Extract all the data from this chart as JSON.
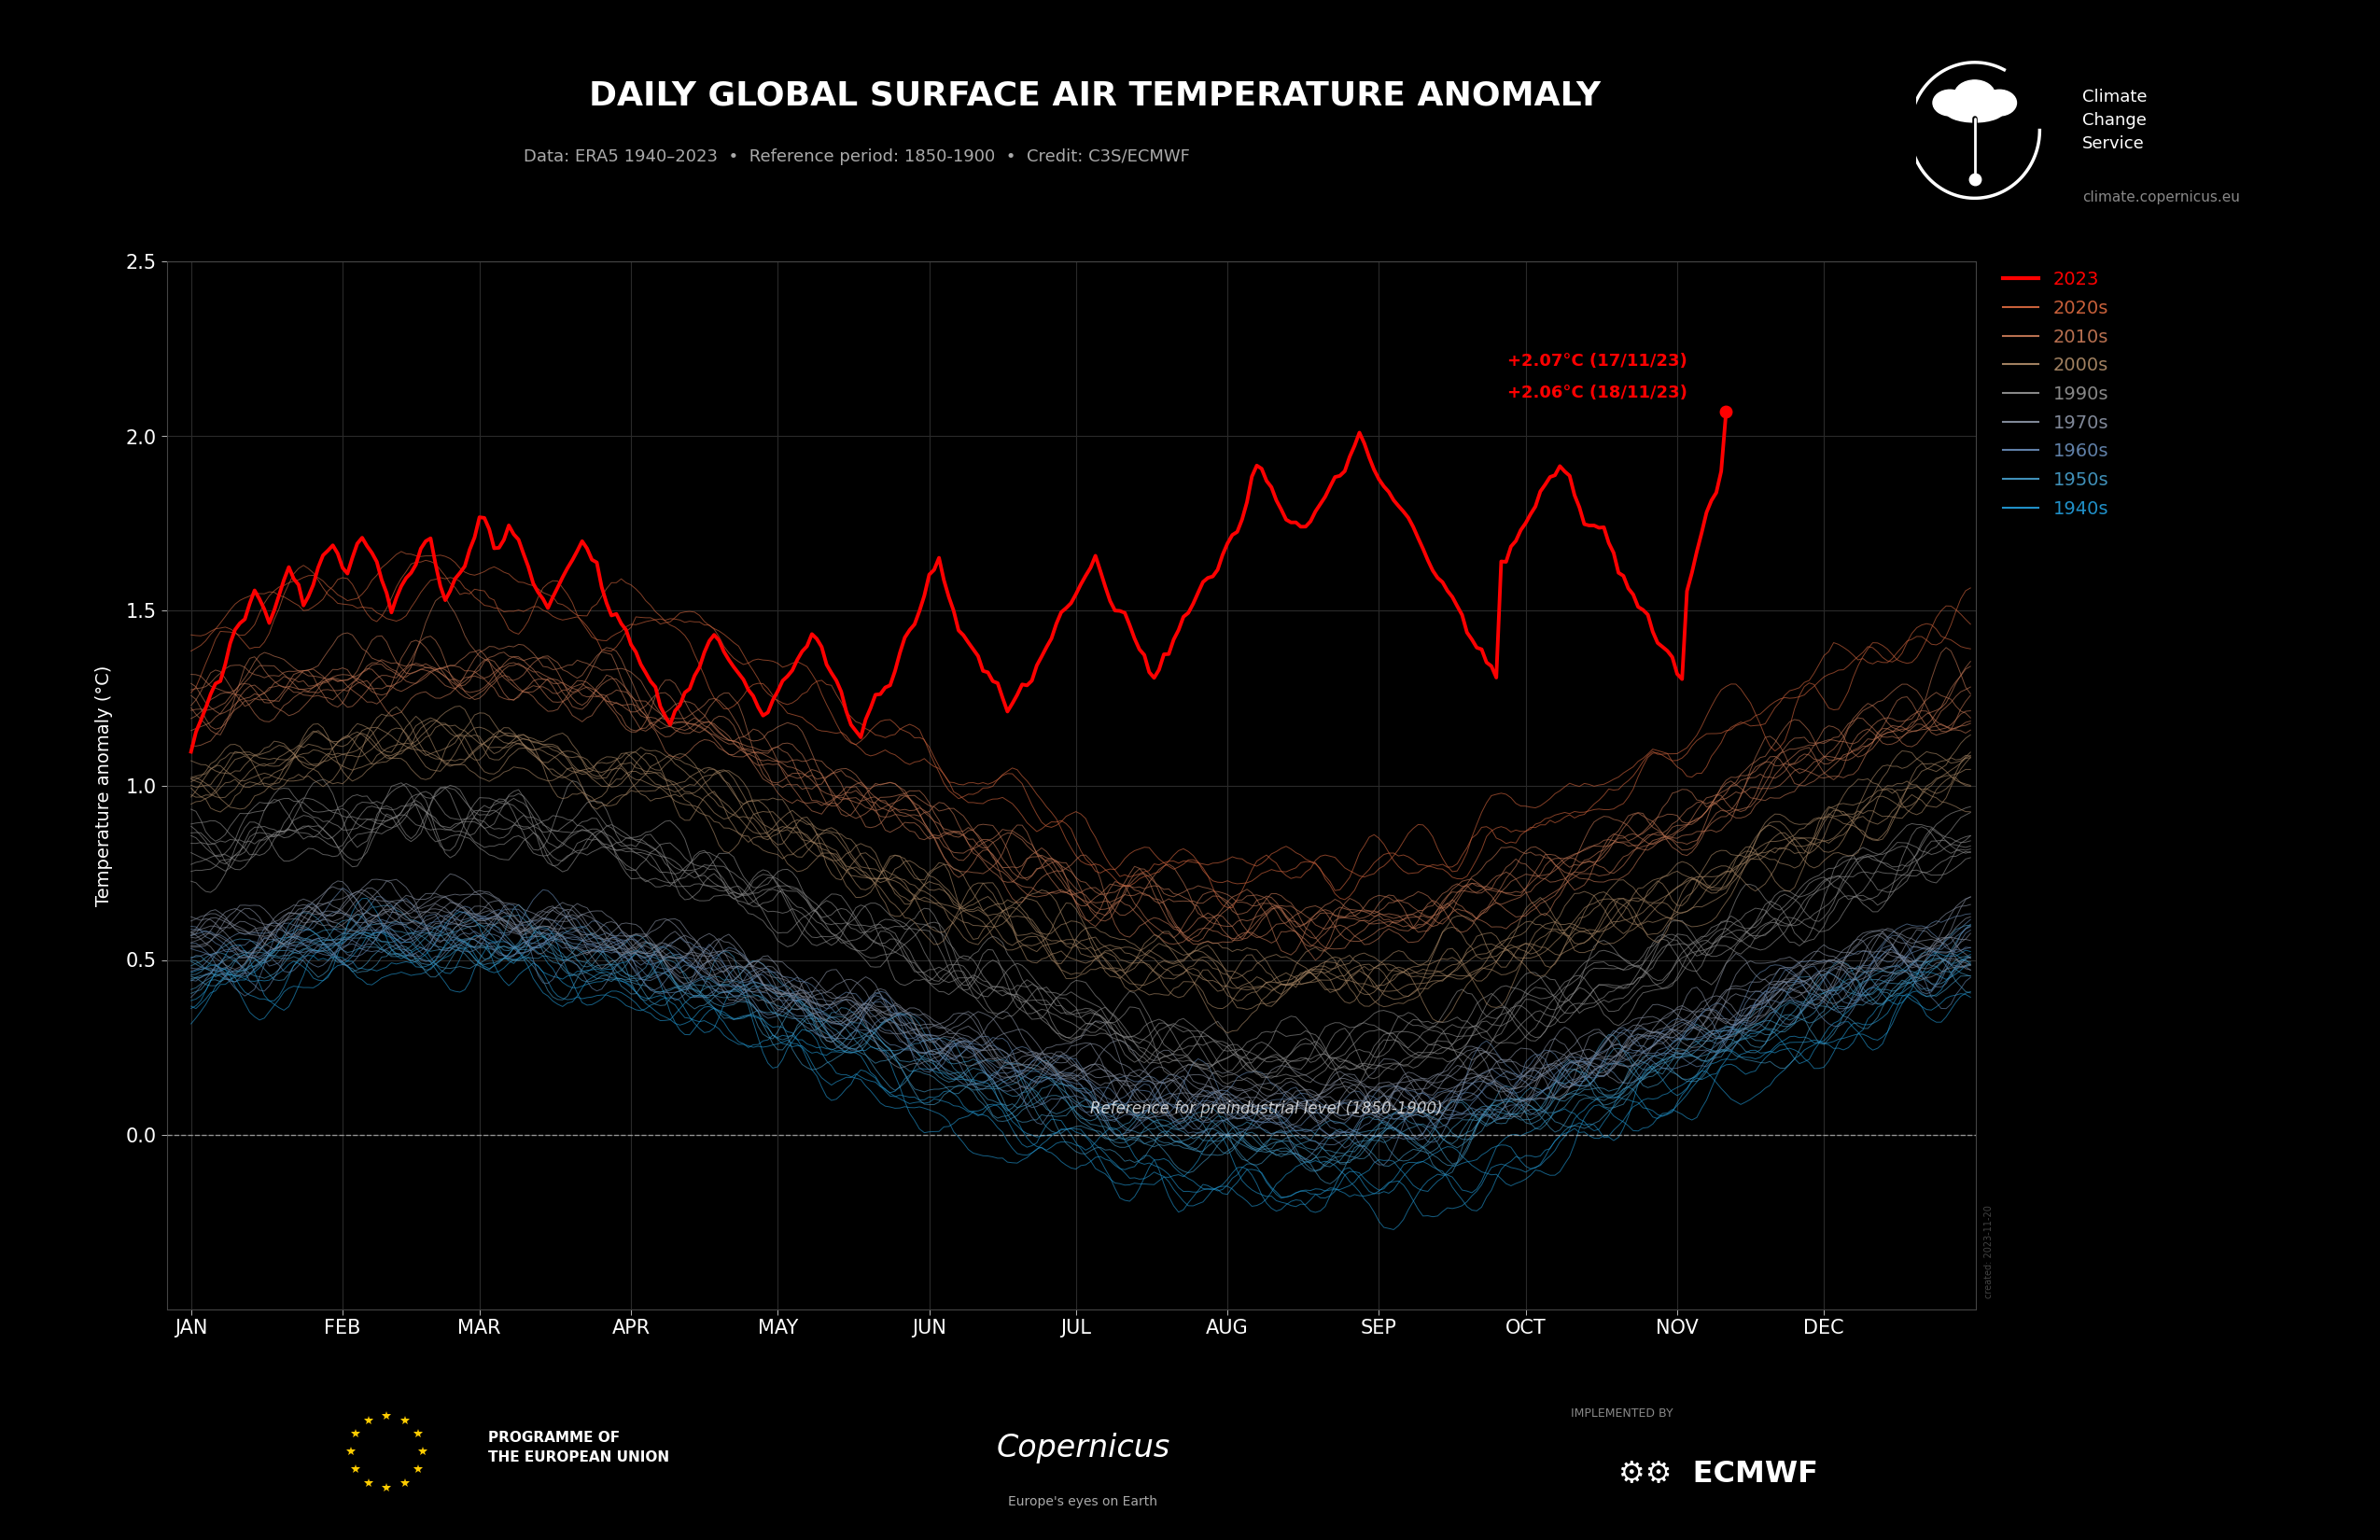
{
  "title": "DAILY GLOBAL SURFACE AIR TEMPERATURE ANOMALY",
  "subtitle": "Data: ERA5 1940–2023  •  Reference period: 1850-1900  •  Credit: C3S/ECMWF",
  "ylabel": "Temperature anomaly (°C)",
  "background_color": "#000000",
  "grid_color": "#333333",
  "text_color": "#ffffff",
  "axis_color": "#888888",
  "reference_text": "Reference for preindustrial level (1850-1900)",
  "annotation_line1": "+2.07°C (17/11/23)",
  "annotation_line2": "+2.06°C (18/11/23)",
  "website": "climate.copernicus.eu",
  "decade_labels": [
    "2023",
    "2020s",
    "2010s",
    "2000s",
    "1990s",
    "1970s",
    "1960s",
    "1950s",
    "1940s"
  ],
  "decade_colors": [
    "#ff0000",
    "#c8603a",
    "#b87050",
    "#a08060",
    "#888888",
    "#808898",
    "#6080a8",
    "#4090b8",
    "#2090c8"
  ],
  "ylim": [
    -0.5,
    2.5
  ],
  "yticks": [
    0.0,
    0.5,
    1.0,
    1.5,
    2.0,
    2.5
  ],
  "months": [
    "JAN",
    "FEB",
    "MAR",
    "APR",
    "MAY",
    "JUN",
    "JUL",
    "AUG",
    "SEP",
    "OCT",
    "NOV",
    "DEC"
  ],
  "month_days": [
    0,
    31,
    59,
    90,
    120,
    151,
    181,
    212,
    243,
    273,
    304,
    334
  ]
}
